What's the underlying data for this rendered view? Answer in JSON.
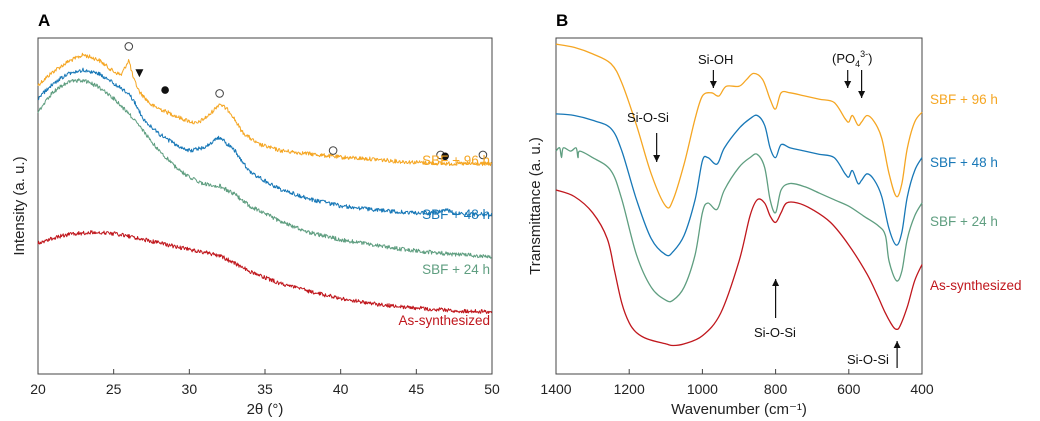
{
  "chart_data": [
    {
      "type": "line",
      "panel_label": "A",
      "xlabel": "2θ (°)",
      "ylabel": "Intensity (a. u.)",
      "xlim": [
        20,
        50
      ],
      "x_ticks": [
        "20",
        "25",
        "30",
        "35",
        "40",
        "45",
        "50"
      ],
      "y_ticks_shown": false,
      "series": [
        {
          "name": "SBF + 96 h",
          "color": "#f5a623",
          "x": [
            20,
            21,
            22,
            23,
            24,
            25,
            25.5,
            26,
            26.3,
            26.7,
            27.5,
            28.5,
            29.5,
            30.5,
            31.3,
            32,
            32.7,
            33.5,
            34.5,
            36,
            38,
            40,
            42,
            44,
            46,
            47,
            48,
            50
          ],
          "y": [
            0.86,
            0.9,
            0.93,
            0.95,
            0.935,
            0.9,
            0.89,
            0.935,
            0.88,
            0.84,
            0.8,
            0.78,
            0.76,
            0.745,
            0.77,
            0.805,
            0.78,
            0.72,
            0.685,
            0.665,
            0.655,
            0.645,
            0.64,
            0.632,
            0.628,
            0.626,
            0.626,
            0.625
          ]
        },
        {
          "name": "SBF + 48 h",
          "color": "#1878b7",
          "x": [
            20,
            21,
            22,
            23,
            24,
            25,
            26,
            26.5,
            27,
            28,
            29,
            30,
            31,
            32,
            33,
            34,
            36,
            38,
            40,
            42,
            44,
            46,
            47,
            47.5,
            48,
            50
          ],
          "y": [
            0.82,
            0.865,
            0.895,
            0.905,
            0.895,
            0.865,
            0.835,
            0.8,
            0.755,
            0.715,
            0.685,
            0.665,
            0.675,
            0.705,
            0.665,
            0.6,
            0.55,
            0.52,
            0.5,
            0.49,
            0.482,
            0.478,
            0.49,
            0.478,
            0.476,
            0.475
          ]
        },
        {
          "name": "SBF + 24 h",
          "color": "#5f9e80",
          "x": [
            20,
            21,
            22,
            23,
            24,
            25,
            26,
            27,
            28,
            29,
            30,
            31,
            32,
            33,
            34,
            36,
            38,
            40,
            42,
            44,
            46,
            48,
            50
          ],
          "y": [
            0.78,
            0.84,
            0.87,
            0.875,
            0.855,
            0.82,
            0.775,
            0.72,
            0.665,
            0.62,
            0.585,
            0.565,
            0.56,
            0.535,
            0.5,
            0.455,
            0.42,
            0.4,
            0.385,
            0.372,
            0.362,
            0.355,
            0.35
          ]
        },
        {
          "name": "As-synthesized",
          "color": "#c0171d",
          "x": [
            20,
            21,
            22,
            23,
            24,
            25,
            26,
            28,
            30,
            31,
            32,
            33,
            34,
            36,
            38,
            40,
            42,
            44,
            46,
            48,
            50
          ],
          "y": [
            0.39,
            0.405,
            0.415,
            0.42,
            0.422,
            0.418,
            0.41,
            0.39,
            0.37,
            0.362,
            0.352,
            0.33,
            0.305,
            0.27,
            0.245,
            0.225,
            0.21,
            0.2,
            0.193,
            0.188,
            0.185
          ]
        }
      ],
      "markers": [
        {
          "symbol": "open-circle",
          "x": 26.0,
          "y": 0.975
        },
        {
          "symbol": "filled-triangle-down",
          "x": 26.7,
          "y": 0.895
        },
        {
          "symbol": "filled-circle",
          "x": 28.4,
          "y": 0.845
        },
        {
          "symbol": "open-circle",
          "x": 32.0,
          "y": 0.835
        },
        {
          "symbol": "open-circle",
          "x": 39.5,
          "y": 0.665
        },
        {
          "symbol": "open-circle",
          "x": 46.6,
          "y": 0.652
        },
        {
          "symbol": "filled-circle",
          "x": 46.9,
          "y": 0.648
        },
        {
          "symbol": "open-circle",
          "x": 49.4,
          "y": 0.652
        }
      ]
    },
    {
      "type": "line",
      "panel_label": "B",
      "xlabel": "Wavenumber (cm⁻¹)",
      "ylabel": "Transmittance (a. u.)",
      "xlim": [
        1400,
        400
      ],
      "x_reversed": true,
      "x_ticks": [
        "1400",
        "1200",
        "1000",
        "800",
        "600",
        "400"
      ],
      "y_ticks_shown": false,
      "series": [
        {
          "name": "SBF + 96 h",
          "color": "#f5a623",
          "x": [
            1400,
            1350,
            1300,
            1250,
            1220,
            1180,
            1140,
            1100,
            1080,
            1050,
            1020,
            1000,
            975,
            955,
            935,
            900,
            880,
            860,
            835,
            815,
            800,
            785,
            760,
            720,
            680,
            640,
            610,
            600,
            590,
            575,
            565,
            550,
            530,
            510,
            490,
            470,
            455,
            440,
            420,
            400
          ],
          "y": [
            0.95,
            0.94,
            0.92,
            0.89,
            0.83,
            0.7,
            0.55,
            0.45,
            0.47,
            0.58,
            0.72,
            0.79,
            0.8,
            0.79,
            0.82,
            0.82,
            0.84,
            0.86,
            0.84,
            0.78,
            0.75,
            0.8,
            0.8,
            0.79,
            0.78,
            0.77,
            0.72,
            0.71,
            0.73,
            0.7,
            0.71,
            0.73,
            0.71,
            0.66,
            0.55,
            0.48,
            0.52,
            0.63,
            0.71,
            0.74
          ]
        },
        {
          "name": "SBF + 48 h",
          "color": "#1878b7",
          "x": [
            1400,
            1350,
            1300,
            1250,
            1220,
            1180,
            1140,
            1100,
            1080,
            1050,
            1020,
            1000,
            985,
            960,
            940,
            900,
            870,
            850,
            830,
            815,
            800,
            785,
            760,
            720,
            680,
            640,
            610,
            600,
            590,
            575,
            565,
            550,
            530,
            510,
            490,
            470,
            455,
            440,
            420,
            400
          ],
          "y": [
            0.735,
            0.73,
            0.715,
            0.69,
            0.62,
            0.47,
            0.35,
            0.3,
            0.31,
            0.36,
            0.47,
            0.59,
            0.6,
            0.58,
            0.63,
            0.69,
            0.72,
            0.73,
            0.7,
            0.63,
            0.6,
            0.64,
            0.63,
            0.62,
            0.61,
            0.6,
            0.55,
            0.54,
            0.56,
            0.52,
            0.53,
            0.55,
            0.53,
            0.48,
            0.38,
            0.33,
            0.37,
            0.48,
            0.56,
            0.6
          ]
        },
        {
          "name": "SBF + 24 h",
          "color": "#5f9e80",
          "x": [
            1400,
            1390,
            1385,
            1380,
            1360,
            1345,
            1340,
            1335,
            1300,
            1250,
            1220,
            1180,
            1140,
            1100,
            1080,
            1050,
            1020,
            1000,
            985,
            960,
            940,
            900,
            870,
            850,
            830,
            815,
            800,
            785,
            760,
            720,
            680,
            640,
            600,
            560,
            520,
            500,
            490,
            470,
            455,
            440,
            420,
            400
          ],
          "y": [
            0.62,
            0.63,
            0.6,
            0.63,
            0.62,
            0.63,
            0.6,
            0.62,
            0.6,
            0.56,
            0.47,
            0.3,
            0.2,
            0.16,
            0.16,
            0.2,
            0.3,
            0.43,
            0.46,
            0.44,
            0.5,
            0.57,
            0.6,
            0.61,
            0.57,
            0.47,
            0.43,
            0.5,
            0.52,
            0.51,
            0.49,
            0.47,
            0.45,
            0.42,
            0.39,
            0.36,
            0.28,
            0.22,
            0.25,
            0.35,
            0.42,
            0.46
          ]
        },
        {
          "name": "As-synthesized",
          "color": "#c0171d",
          "x": [
            1400,
            1350,
            1300,
            1260,
            1240,
            1220,
            1200,
            1180,
            1150,
            1100,
            1080,
            1050,
            1000,
            950,
            900,
            870,
            850,
            830,
            815,
            800,
            785,
            770,
            740,
            700,
            650,
            600,
            550,
            520,
            500,
            480,
            470,
            460,
            440,
            420,
            400
          ],
          "y": [
            0.5,
            0.48,
            0.43,
            0.35,
            0.25,
            0.15,
            0.09,
            0.06,
            0.04,
            0.025,
            0.02,
            0.025,
            0.05,
            0.12,
            0.28,
            0.42,
            0.47,
            0.46,
            0.42,
            0.4,
            0.43,
            0.46,
            0.46,
            0.44,
            0.4,
            0.33,
            0.24,
            0.17,
            0.12,
            0.08,
            0.07,
            0.08,
            0.14,
            0.22,
            0.27
          ]
        }
      ],
      "annotations": [
        {
          "text": "Si-O-Si",
          "arrow": "down",
          "x": 1125
        },
        {
          "text": "Si-OH",
          "arrow": "down",
          "x": 970
        },
        {
          "text": "(PO₄³⁻)",
          "arrow": "down-pair",
          "x": [
            603,
            565
          ]
        },
        {
          "text": "Si-O-Si",
          "arrow": "up",
          "x": 800
        },
        {
          "text": "Si-O-Si",
          "arrow": "up",
          "x": 468
        }
      ]
    }
  ],
  "labels": {
    "panel_a": "A",
    "panel_b": "B",
    "a_xlabel": "2θ (°)",
    "a_ylabel": "Intensity (a. u.)",
    "b_xlabel": "Wavenumber (cm⁻¹)",
    "b_ylabel": "Transmittance (a. u.)",
    "s96": "SBF + 96 h",
    "s48": "SBF + 48 h",
    "s24": "SBF + 24 h",
    "sas": "As-synthesized",
    "si_o_si": "Si-O-Si",
    "si_oh": "Si-OH",
    "po4_open": "(PO",
    "po4_sub": "4",
    "po4_sup": "3-",
    "po4_close": ")"
  }
}
